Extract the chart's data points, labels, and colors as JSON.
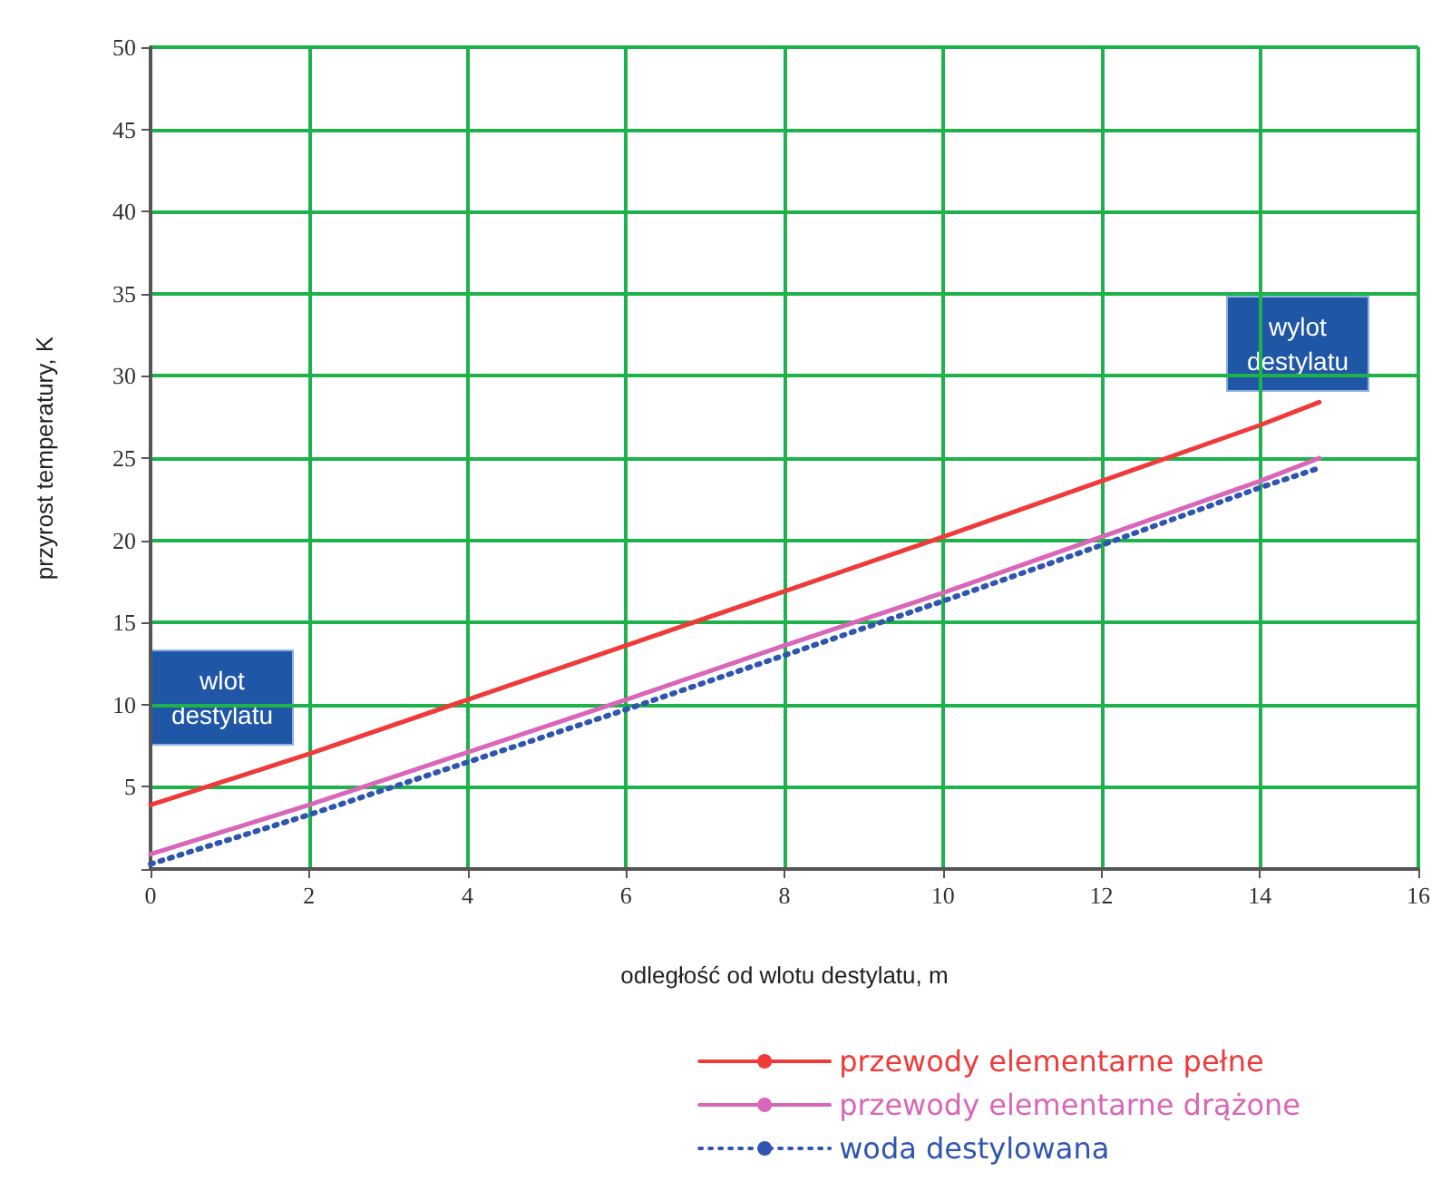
{
  "chart_data": {
    "type": "line",
    "xlabel": "odległość od wlotu destylatu, m",
    "ylabel": "przyrost temperatury, K",
    "xlim": [
      0,
      16
    ],
    "xticks": [
      0,
      2,
      4,
      6,
      8,
      10,
      12,
      14,
      16
    ],
    "ylim": [
      0,
      50
    ],
    "yticks": [
      {
        "value": 0,
        "label": null
      },
      5,
      10,
      15,
      20,
      25,
      30,
      35,
      40,
      45,
      50
    ],
    "x": [
      0,
      2,
      4,
      6,
      8,
      10,
      12,
      14,
      14.75
    ],
    "series": [
      {
        "name": "przewody elementarne pełne",
        "color": "#f03a3a",
        "line_style": "solid",
        "values": [
          3.9,
          7.0,
          10.3,
          13.6,
          16.9,
          20.2,
          23.6,
          27.0,
          28.4
        ]
      },
      {
        "name": "przewody elementarne drążone",
        "color": "#d966b8",
        "line_style": "solid",
        "values": [
          0.9,
          3.9,
          7.1,
          10.3,
          13.6,
          16.8,
          20.2,
          23.6,
          25.0
        ]
      },
      {
        "name": "woda destylowana",
        "color": "#2f55b0",
        "line_style": "dotted",
        "values": [
          0.3,
          3.3,
          6.5,
          9.7,
          13.0,
          16.3,
          19.7,
          23.2,
          24.4
        ]
      }
    ],
    "annotations": [
      "wlot\ndestylatu",
      "wylot\ndestylatu"
    ],
    "grid": true,
    "legend": "bottom right",
    "marker": "none"
  }
}
